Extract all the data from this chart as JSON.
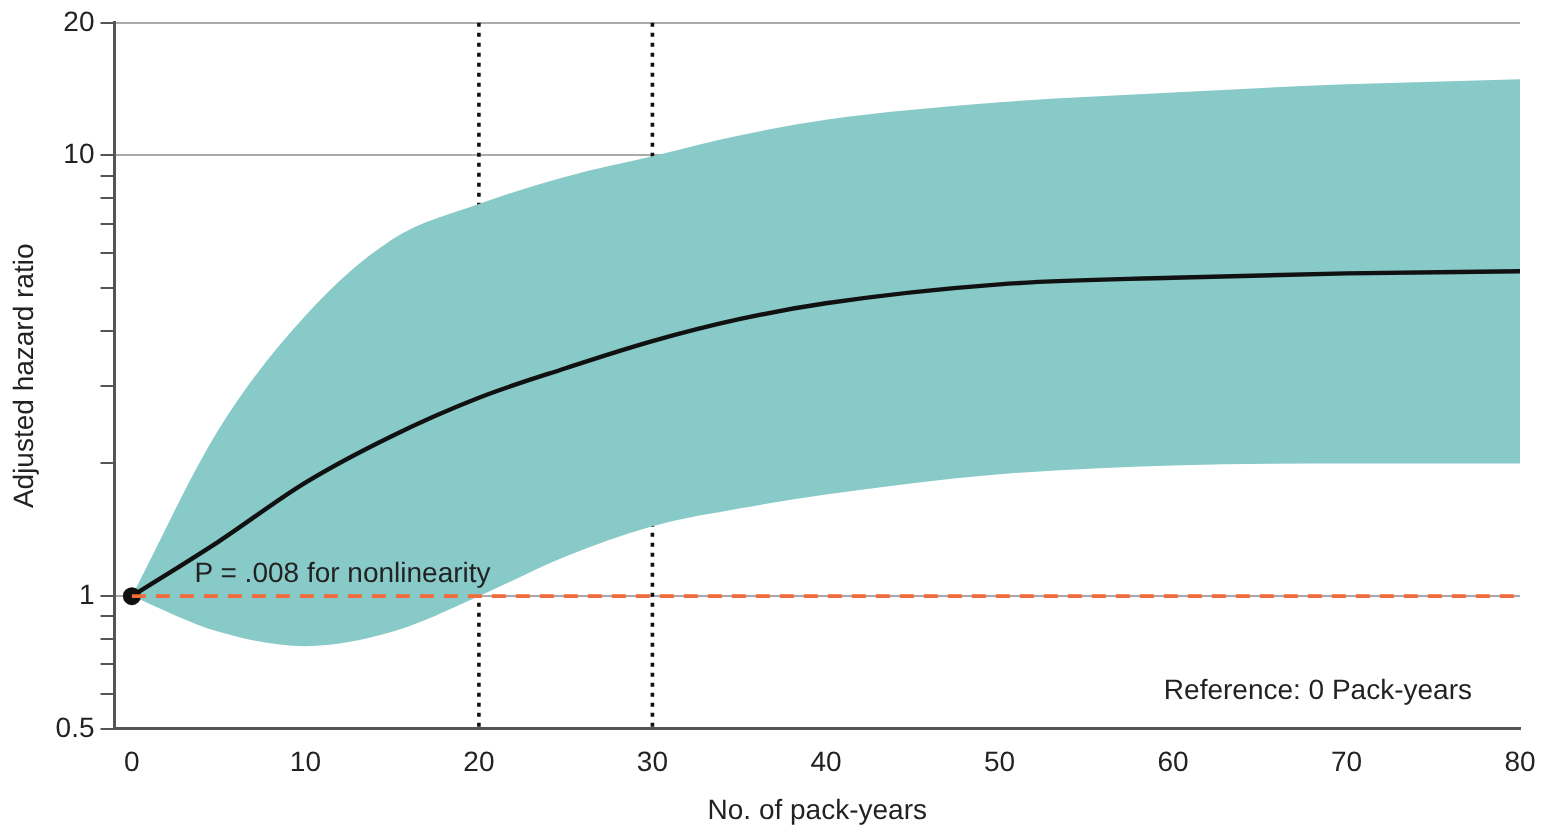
{
  "chart_data": {
    "type": "line",
    "xlabel": "No. of pack-years",
    "ylabel": "Adjusted hazard ratio",
    "x": [
      0,
      5,
      10,
      15,
      20,
      25,
      30,
      35,
      40,
      50,
      60,
      70,
      80
    ],
    "series": [
      {
        "color": "#111111",
        "values": [
          1,
          1.33,
          1.81,
          2.31,
          2.82,
          3.29,
          3.79,
          4.25,
          4.62,
          5.1,
          5.28,
          5.4,
          5.46
        ],
        "lower": [
          1,
          0.83,
          0.77,
          0.83,
          1.0,
          1.23,
          1.44,
          1.58,
          1.7,
          1.89,
          1.98,
          2.0,
          2.0
        ],
        "upper": [
          1,
          2.39,
          4.33,
          6.45,
          7.76,
          8.95,
          9.96,
          11.1,
          12.05,
          13.2,
          13.9,
          14.5,
          14.9
        ]
      },
      {
        "type": "scatter",
        "x": [
          0
        ],
        "values": [
          1
        ],
        "color": "#111111",
        "marker": "circle"
      }
    ],
    "log": "y",
    "xlim": [
      -1,
      80
    ],
    "ylim": [
      0.5,
      20
    ],
    "xticks": [
      0,
      10,
      20,
      30,
      40,
      50,
      60,
      70,
      80
    ],
    "yticks": [
      0.5,
      {
        "value": 0.6,
        "label": null
      },
      {
        "value": 0.7,
        "label": null
      },
      {
        "value": 0.8,
        "label": null
      },
      {
        "value": 0.9,
        "label": null
      },
      1,
      {
        "value": 2,
        "label": null
      },
      {
        "value": 3,
        "label": null
      },
      {
        "value": 4,
        "label": null
      },
      {
        "value": 5,
        "label": null
      },
      {
        "value": 6,
        "label": null
      },
      {
        "value": 7,
        "label": null
      },
      {
        "value": 8,
        "label": null
      },
      {
        "value": 9,
        "label": null
      },
      10,
      20
    ],
    "grid": "y",
    "legend": false,
    "marker": "none",
    "line_style": "solid",
    "ref_lines": [
      {
        "axis": "y",
        "value": 1,
        "color": "#f26b3a",
        "line_style": "dashed"
      },
      {
        "axis": "x",
        "value": 20,
        "color": "#111111",
        "line_style": "dotted"
      },
      {
        "axis": "x",
        "value": 30,
        "color": "#111111",
        "line_style": "dotted"
      }
    ],
    "annotations": [
      "P = .008 for nonlinearity",
      "Reference: 0 Pack-years"
    ]
  }
}
